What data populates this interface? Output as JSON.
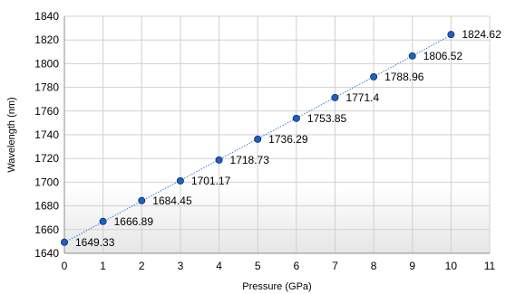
{
  "chart_data": {
    "type": "scatter",
    "title": "",
    "xlabel": "Pressure (GPa)",
    "ylabel": "Wavelength (nm)",
    "xlim": [
      0,
      11
    ],
    "ylim": [
      1640,
      1840
    ],
    "xticks": [
      0,
      1,
      2,
      3,
      4,
      5,
      6,
      7,
      8,
      9,
      10,
      11
    ],
    "yticks": [
      1640,
      1660,
      1680,
      1700,
      1720,
      1740,
      1760,
      1780,
      1800,
      1820,
      1840
    ],
    "grid": true,
    "legend": false,
    "trendline": "linear, dotted",
    "colors": {
      "marker": "#1f5fbf",
      "marker_edge": "#0b2f73",
      "trendline": "#3b7dd8",
      "grid": "#d0d0d0"
    },
    "series": [
      {
        "x": [
          0,
          1,
          2,
          3,
          4,
          5,
          6,
          7,
          8,
          9,
          10
        ],
        "y": [
          1649.33,
          1666.89,
          1684.45,
          1701.17,
          1718.73,
          1736.29,
          1753.85,
          1771.4,
          1788.96,
          1806.52,
          1824.62
        ],
        "labels": [
          "1649.33",
          "1666.89",
          "1684.45",
          "1701.17",
          "1718.73",
          "1736.29",
          "1753.85",
          "1771.4",
          "1788.96",
          "1806.52",
          "1824.62"
        ]
      }
    ]
  }
}
